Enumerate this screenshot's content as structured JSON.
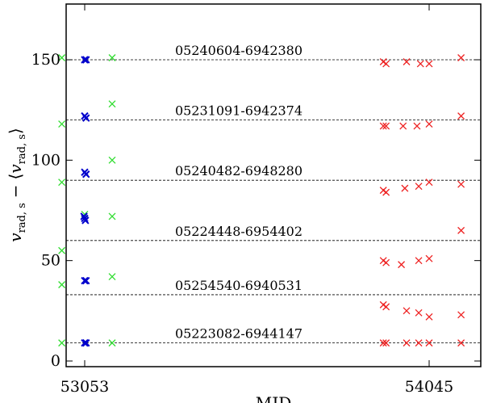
{
  "chart_data": {
    "type": "scatter",
    "title": "",
    "xlabel": "MJD",
    "ylabel_parts": {
      "v": "v",
      "sub": "rad, s",
      "minus": "−",
      "lang": "⟨",
      "rang": "⟩"
    },
    "x_ticks": [
      {
        "label": "53053",
        "value": 53053
      },
      {
        "label": "54045",
        "value": 54045
      }
    ],
    "y_ticks": [
      0,
      50,
      100,
      150
    ],
    "ylim": [
      0,
      178
    ],
    "grid": false,
    "reference_lines": [
      {
        "label": "05240604-6942380",
        "y": 150
      },
      {
        "label": "05231091-6942374",
        "y": 120
      },
      {
        "label": "05240482-6948280",
        "y": 90
      },
      {
        "label": "05224448-6954402",
        "y": 60
      },
      {
        "label": "05254540-6940531",
        "y": 33
      },
      {
        "label": "05223082-6944147",
        "y": 9
      }
    ],
    "colors": {
      "green": "#33dd33",
      "blue": "#0000cc",
      "red": "#ee2222",
      "axis": "#000000",
      "line": "#000000"
    },
    "series": [
      {
        "color": "green",
        "points": [
          [
            52987,
            151
          ],
          [
            53132,
            151
          ],
          [
            52987,
            118
          ],
          [
            53132,
            128
          ],
          [
            52987,
            89
          ],
          [
            53132,
            100
          ],
          [
            53053,
            73
          ],
          [
            53132,
            72
          ],
          [
            52987,
            55
          ],
          [
            52987,
            38
          ],
          [
            53132,
            42
          ],
          [
            52987,
            9
          ],
          [
            53132,
            9
          ]
        ]
      },
      {
        "color": "blue",
        "points": [
          [
            53053,
            150
          ],
          [
            53057,
            150
          ],
          [
            53053,
            122
          ],
          [
            53057,
            121
          ],
          [
            53053,
            94
          ],
          [
            53057,
            93
          ],
          [
            53053,
            71
          ],
          [
            53055,
            70
          ],
          [
            53051,
            72
          ],
          [
            53053,
            40
          ],
          [
            53057,
            40
          ],
          [
            53053,
            9
          ],
          [
            53057,
            9
          ]
        ]
      },
      {
        "color": "red",
        "points": [
          [
            53913,
            149
          ],
          [
            53921,
            148
          ],
          [
            53980,
            149
          ],
          [
            54020,
            148
          ],
          [
            54045,
            148
          ],
          [
            54137,
            151
          ],
          [
            53913,
            117
          ],
          [
            53921,
            117
          ],
          [
            53970,
            117
          ],
          [
            54010,
            117
          ],
          [
            54045,
            118
          ],
          [
            54137,
            122
          ],
          [
            53913,
            85
          ],
          [
            53921,
            84
          ],
          [
            53975,
            86
          ],
          [
            54015,
            87
          ],
          [
            54045,
            89
          ],
          [
            54137,
            88
          ],
          [
            54137,
            65
          ],
          [
            53913,
            50
          ],
          [
            53921,
            49
          ],
          [
            53965,
            48
          ],
          [
            54015,
            50
          ],
          [
            54045,
            51
          ],
          [
            53913,
            28
          ],
          [
            53921,
            27
          ],
          [
            53980,
            25
          ],
          [
            54015,
            24
          ],
          [
            54045,
            22
          ],
          [
            54137,
            23
          ],
          [
            53913,
            9
          ],
          [
            53921,
            9
          ],
          [
            53980,
            9
          ],
          [
            54015,
            9
          ],
          [
            54045,
            9
          ],
          [
            54137,
            9
          ]
        ]
      }
    ]
  }
}
